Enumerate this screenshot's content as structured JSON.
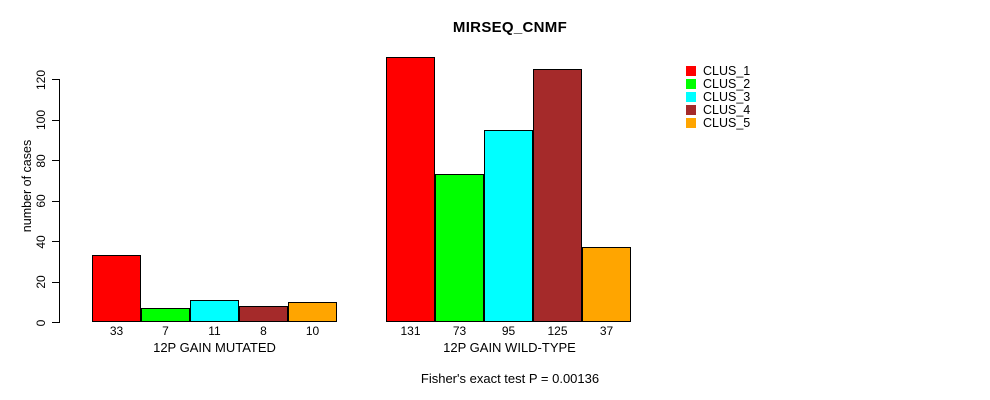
{
  "chart_data": {
    "type": "bar",
    "title": "MIRSEQ_CNMF",
    "ylabel": "number of cases",
    "xlabel": "",
    "yticks": [
      0,
      20,
      40,
      60,
      80,
      100,
      120
    ],
    "ylim": [
      0,
      131
    ],
    "grid": false,
    "legend_position": "right-top",
    "value_labels_shown": true,
    "categories": [
      "12P GAIN MUTATED",
      "12P GAIN WILD-TYPE"
    ],
    "series": [
      {
        "name": "CLUS_1",
        "color": "#FF0000",
        "values": [
          33,
          131
        ]
      },
      {
        "name": "CLUS_2",
        "color": "#00FF00",
        "values": [
          7,
          73
        ]
      },
      {
        "name": "CLUS_3",
        "color": "#00FFFF",
        "values": [
          11,
          95
        ]
      },
      {
        "name": "CLUS_4",
        "color": "#A52A2A",
        "values": [
          8,
          125
        ]
      },
      {
        "name": "CLUS_5",
        "color": "#FFA500",
        "values": [
          10,
          37
        ]
      }
    ],
    "annotation": "Fisher's exact test P = 0.00136"
  }
}
